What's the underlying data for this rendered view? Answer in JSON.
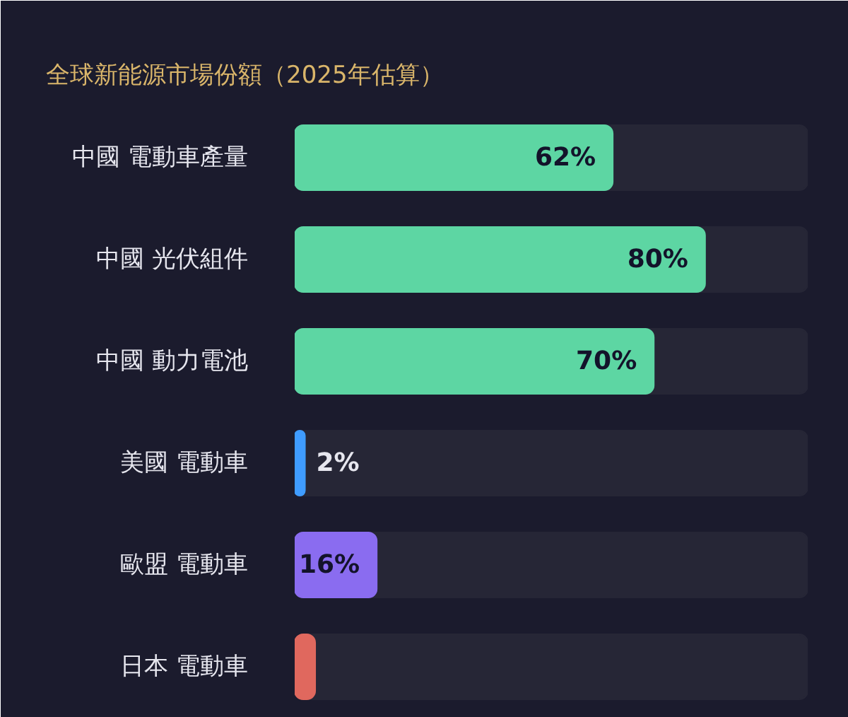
{
  "chart_data": {
    "type": "bar",
    "orientation": "horizontal",
    "title": "全球新能源市場份額（2025年估算）",
    "categories": [
      "中國 電動車產量",
      "中國 光伏組件",
      "中國 動力電池",
      "美國 電動車",
      "歐盟 電動車",
      "日本 電動車"
    ],
    "values": [
      62,
      80,
      70,
      2,
      16,
      4
    ],
    "colors": [
      "#5dd6a3",
      "#5dd6a3",
      "#5dd6a3",
      "#3f9cff",
      "#8a6cf0",
      "#e0685e"
    ],
    "value_labels": [
      "62%",
      "80%",
      "70%",
      "2%",
      "16%",
      null
    ],
    "xlim": [
      0,
      100
    ],
    "tick_labels": "y"
  }
}
